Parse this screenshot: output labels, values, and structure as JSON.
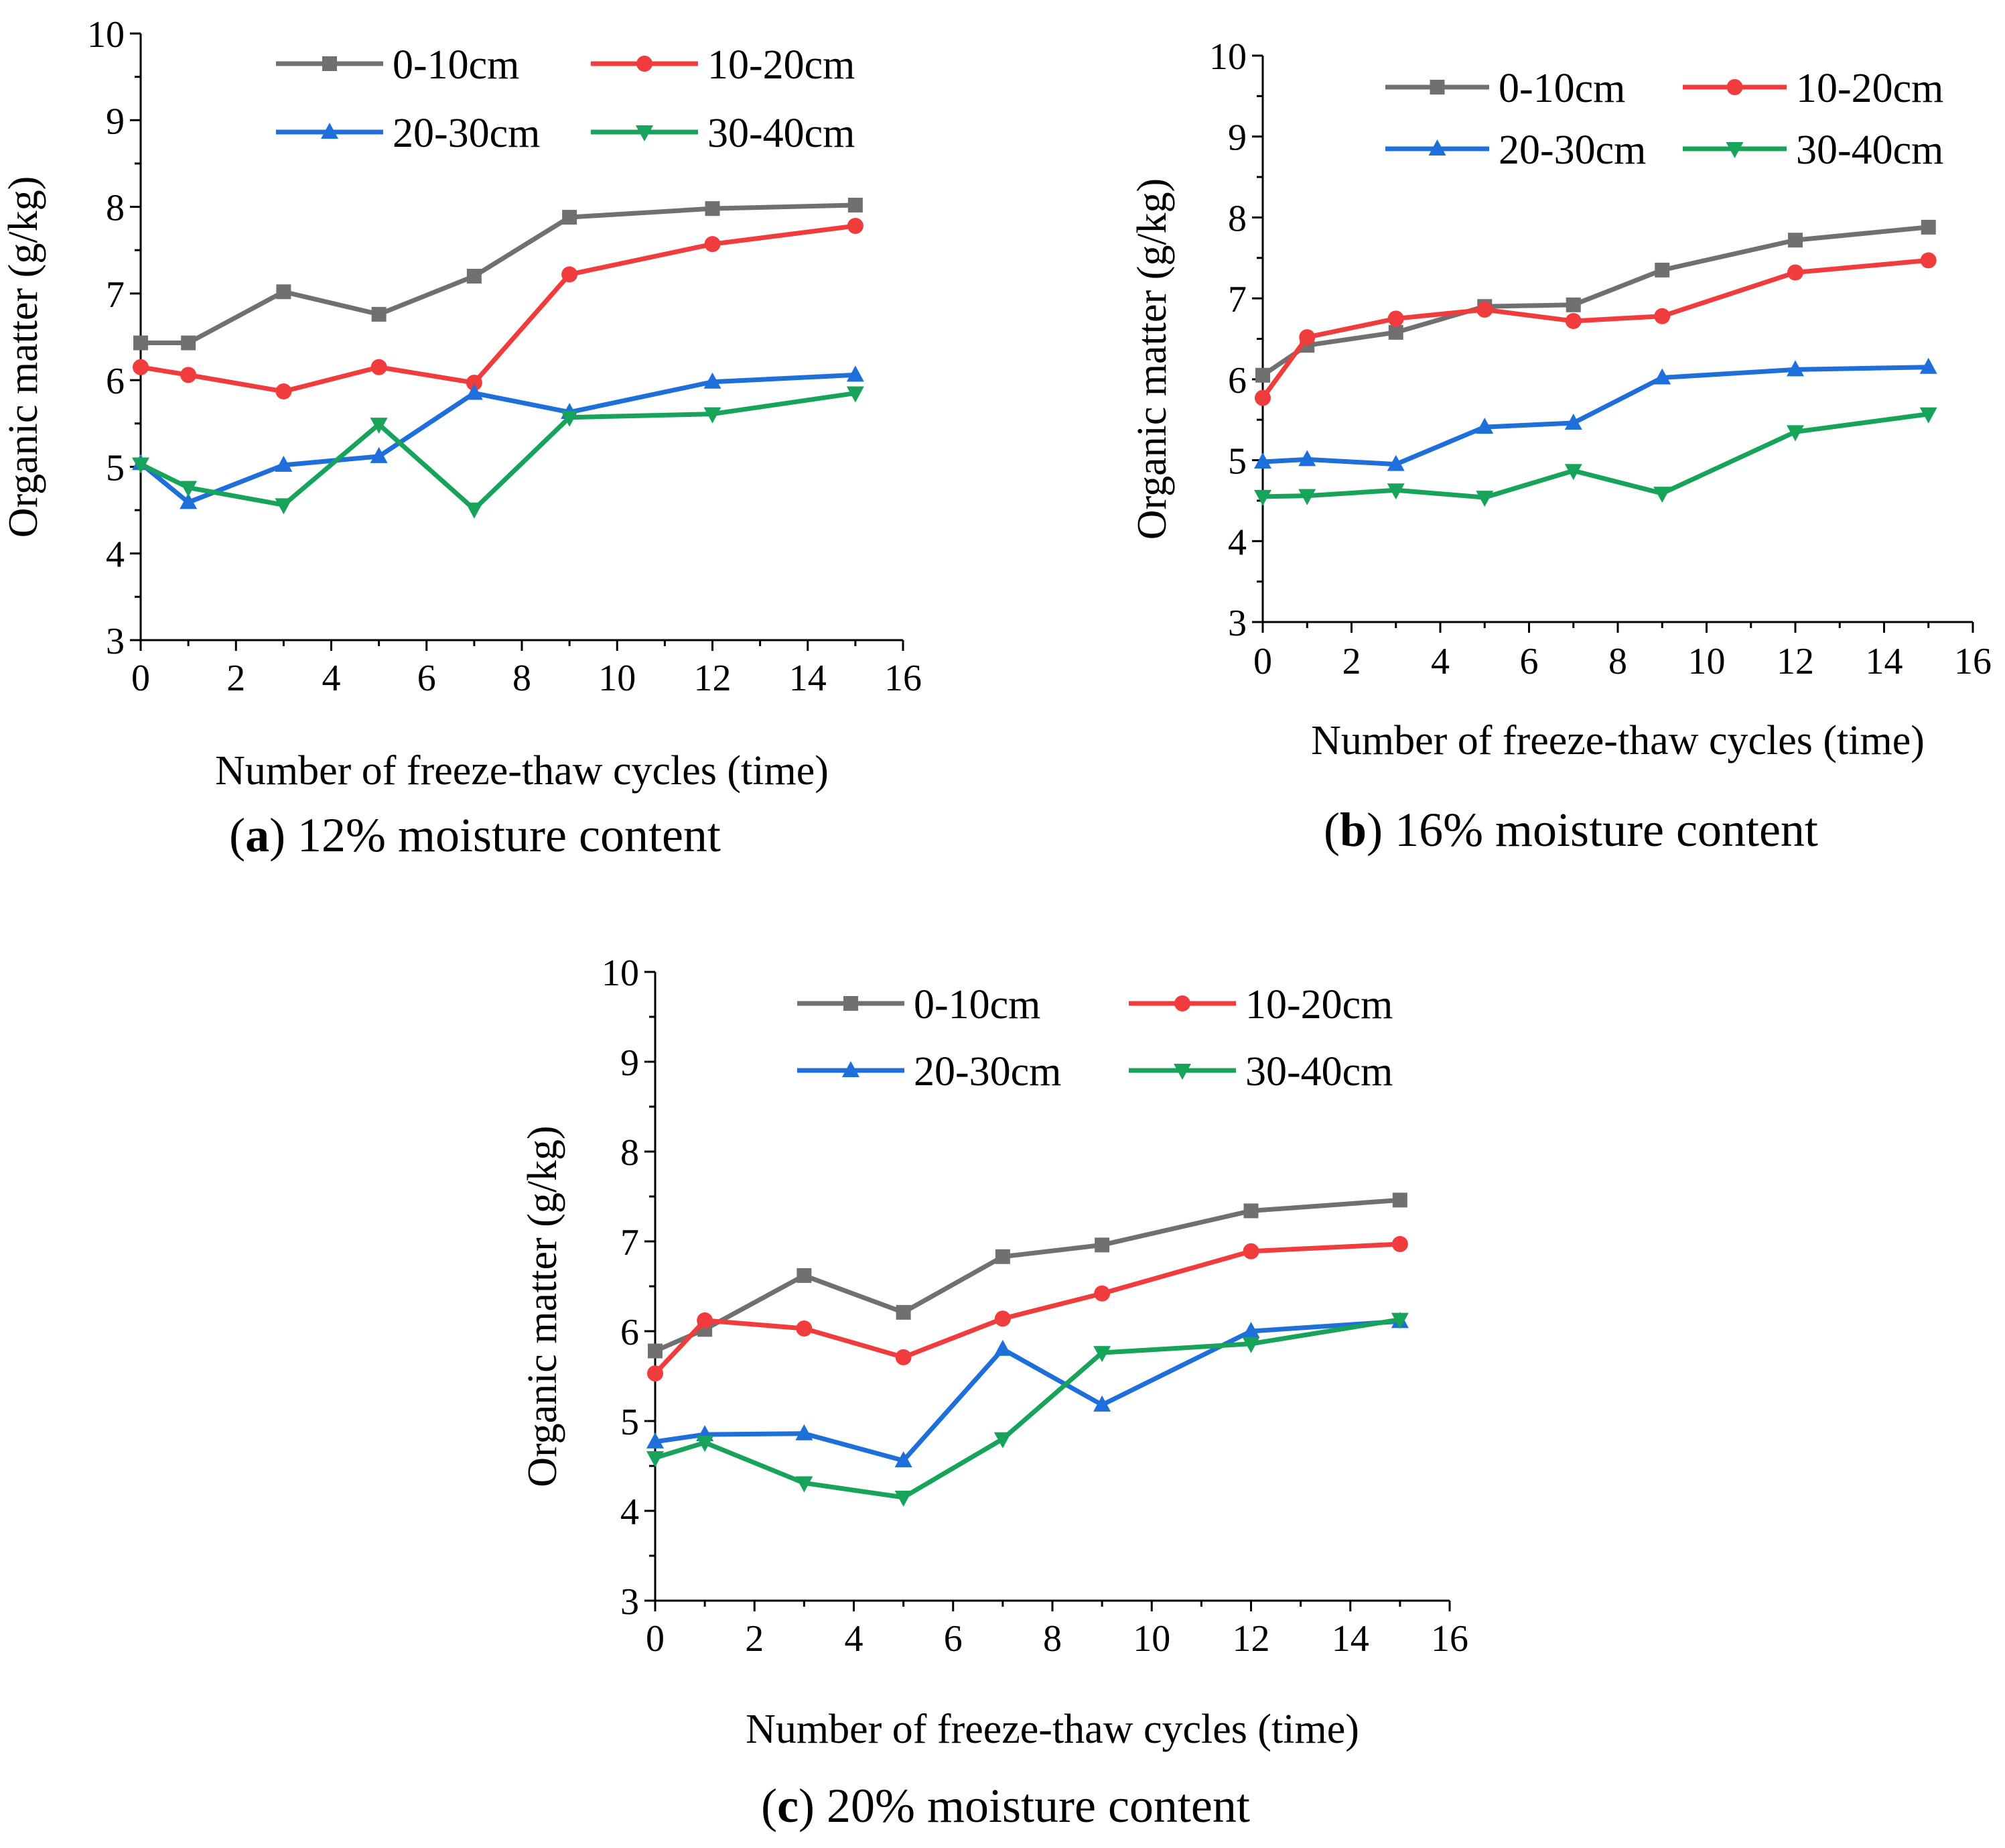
{
  "figure": {
    "charts": [
      {
        "id": "a",
        "caption_letter": "(a)",
        "caption_text": " 12% moisture content"
      },
      {
        "id": "b",
        "caption_letter": "(b)",
        "caption_text": " 16% moisture content"
      },
      {
        "id": "c",
        "caption_letter": "(c)",
        "caption_text": " 20% moisture content"
      }
    ]
  },
  "chart_data": [
    {
      "type": "line",
      "title": "(a) 12% moisture content",
      "xlabel": "Number of freeze-thaw cycles (time)",
      "ylabel": "Organic matter (g/kg)",
      "xlim": [
        0,
        16
      ],
      "ylim": [
        3,
        10
      ],
      "xticks": [
        0,
        2,
        4,
        6,
        8,
        10,
        12,
        14,
        16
      ],
      "yticks": [
        3,
        4,
        5,
        6,
        7,
        8,
        9,
        10
      ],
      "legend_position": "top",
      "x": [
        0,
        1,
        3,
        5,
        7,
        9,
        12,
        15
      ],
      "series": [
        {
          "name": "0-10cm",
          "color": "#707070",
          "marker": "square",
          "values": [
            6.43,
            6.43,
            7.02,
            6.76,
            7.2,
            7.88,
            7.98,
            8.02
          ]
        },
        {
          "name": "10-20cm",
          "color": "#f03c3c",
          "marker": "circle",
          "values": [
            6.15,
            6.06,
            5.87,
            6.15,
            5.97,
            7.22,
            7.57,
            7.78
          ]
        },
        {
          "name": "20-30cm",
          "color": "#1e6fd9",
          "marker": "triangle-up",
          "values": [
            5.04,
            4.59,
            5.02,
            5.12,
            5.85,
            5.63,
            5.98,
            6.06
          ]
        },
        {
          "name": "30-40cm",
          "color": "#18a35a",
          "marker": "triangle-down",
          "values": [
            5.03,
            4.76,
            4.56,
            5.49,
            4.51,
            5.57,
            5.61,
            5.85
          ]
        }
      ]
    },
    {
      "type": "line",
      "title": "(b) 16% moisture content",
      "xlabel": "Number of freeze-thaw cycles (time)",
      "ylabel": "Organic matter (g/kg)",
      "xlim": [
        0,
        16
      ],
      "ylim": [
        3,
        10
      ],
      "xticks": [
        0,
        2,
        4,
        6,
        8,
        10,
        12,
        14,
        16
      ],
      "yticks": [
        3,
        4,
        5,
        6,
        7,
        8,
        9,
        10
      ],
      "legend_position": "top",
      "x": [
        0,
        1,
        3,
        5,
        7,
        9,
        12,
        15
      ],
      "series": [
        {
          "name": "0-10cm",
          "color": "#707070",
          "marker": "square",
          "values": [
            6.05,
            6.42,
            6.58,
            6.9,
            6.92,
            7.35,
            7.72,
            7.88
          ]
        },
        {
          "name": "10-20cm",
          "color": "#f03c3c",
          "marker": "circle",
          "values": [
            5.77,
            6.52,
            6.75,
            6.86,
            6.72,
            6.78,
            7.32,
            7.47
          ]
        },
        {
          "name": "20-30cm",
          "color": "#1e6fd9",
          "marker": "triangle-up",
          "values": [
            4.98,
            5.01,
            4.95,
            5.41,
            5.46,
            6.02,
            6.12,
            6.15
          ]
        },
        {
          "name": "30-40cm",
          "color": "#18a35a",
          "marker": "triangle-down",
          "values": [
            4.55,
            4.56,
            4.63,
            4.54,
            4.87,
            4.59,
            5.35,
            5.57
          ]
        }
      ]
    },
    {
      "type": "line",
      "title": "(c) 20% moisture content",
      "xlabel": "Number of freeze-thaw cycles (time)",
      "ylabel": "Organic matter (g/kg)",
      "xlim": [
        0,
        16
      ],
      "ylim": [
        3,
        10
      ],
      "xticks": [
        0,
        2,
        4,
        6,
        8,
        10,
        12,
        14,
        16
      ],
      "yticks": [
        3,
        4,
        5,
        6,
        7,
        8,
        9,
        10
      ],
      "legend_position": "top",
      "x": [
        0,
        1,
        3,
        5,
        7,
        9,
        12,
        15
      ],
      "series": [
        {
          "name": "0-10cm",
          "color": "#707070",
          "marker": "square",
          "values": [
            5.78,
            6.02,
            6.62,
            6.21,
            6.83,
            6.96,
            7.34,
            7.46
          ]
        },
        {
          "name": "10-20cm",
          "color": "#f03c3c",
          "marker": "circle",
          "values": [
            5.53,
            6.12,
            6.03,
            5.71,
            6.14,
            6.42,
            6.89,
            6.97
          ]
        },
        {
          "name": "20-30cm",
          "color": "#1e6fd9",
          "marker": "triangle-up",
          "values": [
            4.77,
            4.85,
            4.86,
            4.56,
            5.8,
            5.18,
            6.0,
            6.11
          ]
        },
        {
          "name": "30-40cm",
          "color": "#18a35a",
          "marker": "triangle-down",
          "values": [
            4.59,
            4.76,
            4.31,
            4.15,
            4.8,
            5.76,
            5.86,
            6.13
          ]
        }
      ]
    }
  ]
}
